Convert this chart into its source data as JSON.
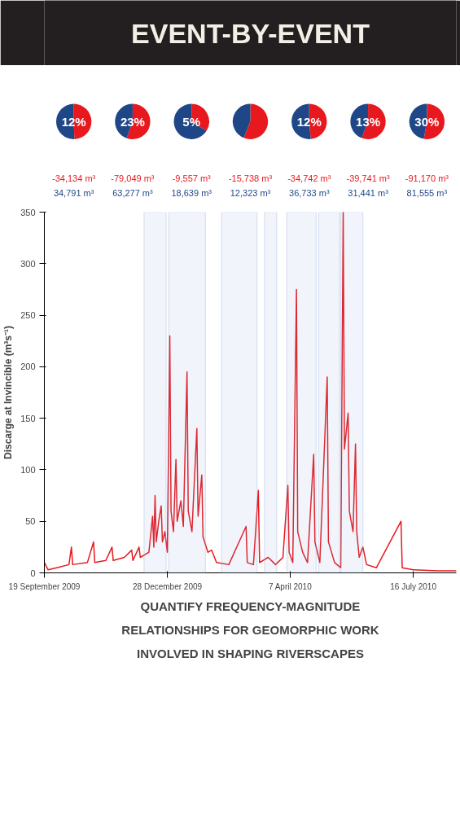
{
  "chart_data": [
    {
      "type": "pie",
      "title": "12%",
      "categories": [
        null,
        null
      ],
      "values": [
        49.5,
        50.5
      ],
      "colors": [
        "#e8191e",
        "#1f4788"
      ],
      "annotations": [
        "-34,134 m³",
        "34,791 m³"
      ]
    },
    {
      "type": "pie",
      "title": "23%",
      "categories": [
        null,
        null
      ],
      "values": [
        55.5,
        44.5
      ],
      "colors": [
        "#e8191e",
        "#1f4788"
      ],
      "annotations": [
        "-79,049 m³",
        "63,277 m³"
      ]
    },
    {
      "type": "pie",
      "title": "5%",
      "categories": [
        null,
        null
      ],
      "values": [
        33.9,
        66.1
      ],
      "colors": [
        "#e8191e",
        "#1f4788"
      ],
      "annotations": [
        "-9,557 m³",
        "18,639 m³"
      ]
    },
    {
      "type": "pie",
      "categories": [
        null,
        null
      ],
      "values": [
        56.1,
        43.9
      ],
      "colors": [
        "#e8191e",
        "#1f4788"
      ],
      "annotations": [
        "-15,738 m³",
        "12,323 m³"
      ]
    },
    {
      "type": "pie",
      "title": "12%",
      "categories": [
        null,
        null
      ],
      "values": [
        48.6,
        51.4
      ],
      "colors": [
        "#e8191e",
        "#1f4788"
      ],
      "annotations": [
        "-34,742 m³",
        "36,733 m³"
      ]
    },
    {
      "type": "pie",
      "title": "13%",
      "categories": [
        null,
        null
      ],
      "values": [
        55.8,
        44.2
      ],
      "colors": [
        "#e8191e",
        "#1f4788"
      ],
      "annotations": [
        "-39,741 m³",
        "31,441 m³"
      ]
    },
    {
      "type": "pie",
      "title": "30%",
      "categories": [
        null,
        null
      ],
      "values": [
        52.8,
        47.2
      ],
      "colors": [
        "#e8191e",
        "#1f4788"
      ],
      "annotations": [
        "-91,170 m³",
        "81,555 m³"
      ]
    },
    {
      "type": "line",
      "title": "EVENT-BY-EVENT",
      "ylabel": "Discarge at Invincible (m³s⁻¹)",
      "annotations": [
        "QUANTIFY FREQUENCY-MAGNITUDE RELATIONSHIPS FOR GEOMORPHIC WORK INVOLVED IN SHAPING RIVERSCAPES"
      ],
      "x": [
        "2009-09-19",
        "2009-09-22",
        "2009-09-29",
        "2009-10-09",
        "2009-10-11",
        "2009-10-12",
        "2009-10-24",
        "2009-10-29",
        "2009-10-30",
        "2009-11-08",
        "2009-11-13",
        "2009-11-14",
        "2009-11-23",
        "2009-11-29",
        "2009-11-30",
        "2009-12-05",
        "2009-12-06",
        "2009-12-13",
        "2009-12-16",
        "2009-12-17",
        "2009-12-18",
        "2009-12-19",
        "2009-12-21",
        "2009-12-23",
        "2009-12-24",
        "2009-12-26",
        "2009-12-28",
        "2009-12-30",
        "2009-12-31",
        "2010-01-02",
        "2010-01-04",
        "2010-01-05",
        "2010-01-08",
        "2010-01-10",
        "2010-01-13",
        "2010-01-14",
        "2010-01-17",
        "2010-01-21",
        "2010-01-22",
        "2010-01-25",
        "2010-01-26",
        "2010-01-30",
        "2010-02-02",
        "2010-02-06",
        "2010-02-16",
        "2010-03-02",
        "2010-03-03",
        "2010-03-08",
        "2010-03-12",
        "2010-03-13",
        "2010-03-20",
        "2010-03-26",
        "2010-04-01",
        "2010-04-05",
        "2010-04-06",
        "2010-04-09",
        "2010-04-12",
        "2010-04-13",
        "2010-04-17",
        "2010-04-21",
        "2010-04-26",
        "2010-04-27",
        "2010-05-01",
        "2010-05-07",
        "2010-05-08",
        "2010-05-13",
        "2010-05-18",
        "2010-05-20",
        "2010-05-21",
        "2010-05-24",
        "2010-05-25",
        "2010-05-28",
        "2010-05-30",
        "2010-05-31",
        "2010-06-02",
        "2010-06-05",
        "2010-06-08",
        "2010-06-16",
        "2010-07-06",
        "2010-07-07",
        "2010-07-16",
        "2010-08-05",
        "2010-08-20"
      ],
      "series": [
        {
          "color": "#e8191e",
          "values": [
            10,
            3,
            5,
            8,
            25,
            8,
            10,
            30,
            10,
            12,
            25,
            12,
            15,
            22,
            12,
            25,
            15,
            20,
            55,
            25,
            75,
            30,
            50,
            65,
            30,
            40,
            20,
            230,
            60,
            40,
            110,
            50,
            70,
            45,
            195,
            60,
            40,
            140,
            55,
            95,
            35,
            20,
            22,
            10,
            8,
            45,
            10,
            8,
            80,
            10,
            15,
            8,
            15,
            85,
            20,
            10,
            275,
            40,
            20,
            10,
            115,
            30,
            10,
            190,
            30,
            10,
            5,
            350,
            120,
            155,
            60,
            40,
            125,
            40,
            15,
            25,
            8,
            5,
            50,
            5,
            3,
            2,
            2
          ]
        }
      ],
      "xlim": [
        "2009-09-19",
        "2010-08-20"
      ],
      "xticks": [
        {
          "value": "2009-09-19",
          "label": "19 September 2009"
        },
        {
          "value": "2009-12-28",
          "label": "28 December 2009"
        },
        {
          "value": "2010-04-07",
          "label": "7 April 2010"
        },
        {
          "value": "2010-07-16",
          "label": "16 July 2010"
        }
      ],
      "ylim": [
        0,
        350
      ],
      "yticks": [
        0,
        50,
        100,
        150,
        200,
        250,
        300,
        350
      ],
      "grid": false,
      "bands": [
        {
          "axis": "x",
          "from": "2009-12-09",
          "to": "2009-12-27",
          "color": "#8fa8d8"
        },
        {
          "axis": "x",
          "from": "2009-12-29",
          "to": "2010-01-28",
          "color": "#8fa8d8"
        },
        {
          "axis": "x",
          "from": "2010-02-10",
          "to": "2010-03-11",
          "color": "#8fa8d8"
        },
        {
          "axis": "x",
          "from": "2010-03-17",
          "to": "2010-03-27",
          "color": "#8fa8d8"
        },
        {
          "axis": "x",
          "from": "2010-04-04",
          "to": "2010-04-28",
          "color": "#8fa8d8"
        },
        {
          "axis": "x",
          "from": "2010-04-30",
          "to": "2010-05-17",
          "color": "#8fa8d8"
        },
        {
          "axis": "x",
          "from": "2010-05-18",
          "to": "2010-06-05",
          "color": "#8fa8d8"
        }
      ]
    }
  ]
}
